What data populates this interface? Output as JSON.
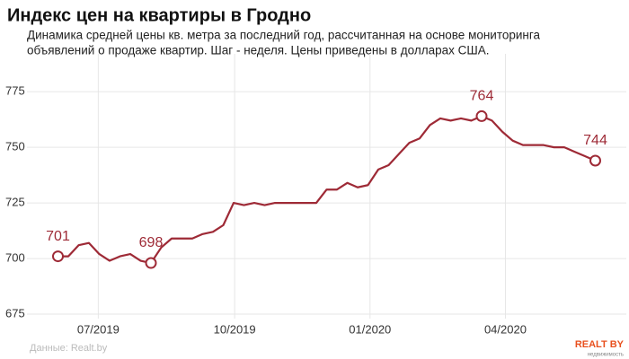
{
  "chart_data": {
    "type": "line",
    "title": "Индекс цен на квартиры в Гродно",
    "subtitle": [
      "Динамика средней цены кв. метра за последний год, рассчитанная на основе мониторинга",
      "объявлений о продаже квартир. Шаг - неделя. Цены приведены в долларах США."
    ],
    "source": "Данные: Realt.by",
    "logo": "REALT BY",
    "logo_sub": "недвижимость",
    "x": [
      0,
      1,
      2,
      3,
      4,
      5,
      6,
      7,
      8,
      9,
      10,
      11,
      12,
      13,
      14,
      15,
      16,
      17,
      18,
      19,
      20,
      21,
      22,
      23,
      24,
      25,
      26,
      27,
      28,
      29,
      30,
      31,
      32,
      33,
      34,
      35,
      36,
      37,
      38,
      39,
      40,
      41,
      42,
      43,
      44,
      45,
      46,
      47,
      48,
      49,
      50,
      51,
      52
    ],
    "values": [
      701,
      701,
      706,
      707,
      702,
      699,
      701,
      702,
      699,
      698,
      705,
      709,
      709,
      709,
      711,
      712,
      715,
      725,
      724,
      725,
      724,
      725,
      725,
      725,
      725,
      725,
      731,
      731,
      734,
      732,
      733,
      740,
      742,
      747,
      752,
      754,
      760,
      763,
      762,
      763,
      762,
      764,
      762,
      757,
      753,
      751,
      751,
      751,
      750,
      750,
      748,
      746,
      744
    ],
    "color": "#9e2a36",
    "highlight": [
      0,
      9,
      41,
      52
    ],
    "xlim": [
      -3,
      55
    ],
    "xticks": [
      {
        "value": 3.9,
        "label": "07/2019"
      },
      {
        "value": 17.1,
        "label": "10/2019"
      },
      {
        "value": 30.2,
        "label": "01/2020"
      },
      {
        "value": 43.3,
        "label": "04/2020"
      }
    ],
    "ylim": [
      673,
      792
    ],
    "yticks": [
      675,
      700,
      725,
      750,
      775
    ],
    "grid": true
  }
}
